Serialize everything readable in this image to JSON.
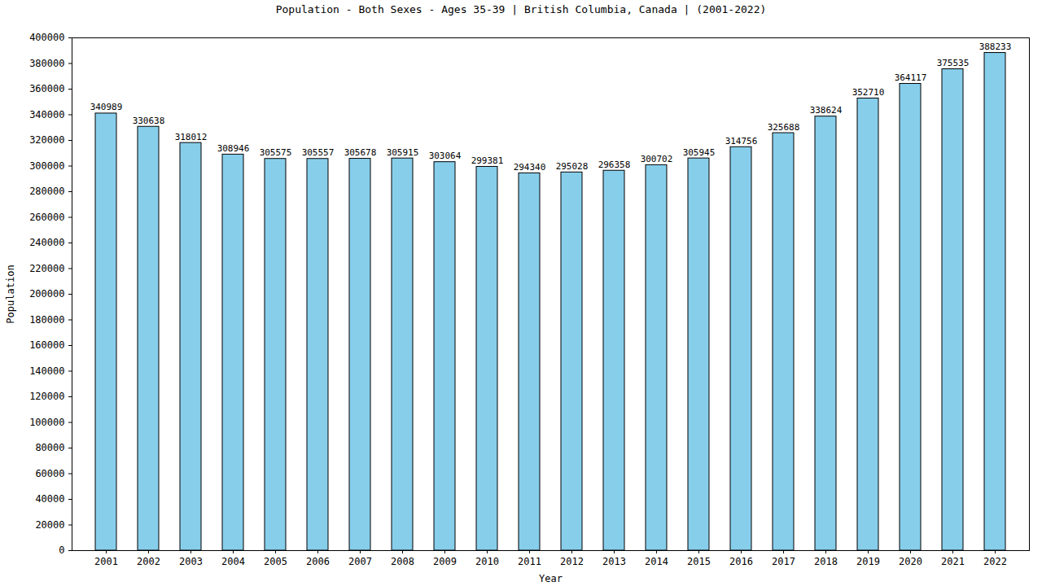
{
  "chart_data": {
    "type": "bar",
    "title": "Population - Both Sexes - Ages 35-39 | British Columbia, Canada |  (2001-2022)",
    "x_label": "Year",
    "y_label": "Population",
    "categories": [
      "2001",
      "2002",
      "2003",
      "2004",
      "2005",
      "2006",
      "2007",
      "2008",
      "2009",
      "2010",
      "2011",
      "2012",
      "2013",
      "2014",
      "2015",
      "2016",
      "2017",
      "2018",
      "2019",
      "2020",
      "2021",
      "2022"
    ],
    "values": [
      340989,
      330638,
      318012,
      308946,
      305575,
      305557,
      305678,
      305915,
      303064,
      299381,
      294340,
      295028,
      296358,
      300702,
      305945,
      314756,
      325688,
      338624,
      352710,
      364117,
      375535,
      388233
    ],
    "color": "#87ceeb",
    "ylim": [
      0,
      400000
    ],
    "yticks": [
      0,
      20000,
      40000,
      60000,
      80000,
      100000,
      120000,
      140000,
      160000,
      180000,
      200000,
      220000,
      240000,
      260000,
      280000,
      300000,
      320000,
      340000,
      360000,
      380000,
      400000
    ],
    "grid": false,
    "data_labels": true
  }
}
